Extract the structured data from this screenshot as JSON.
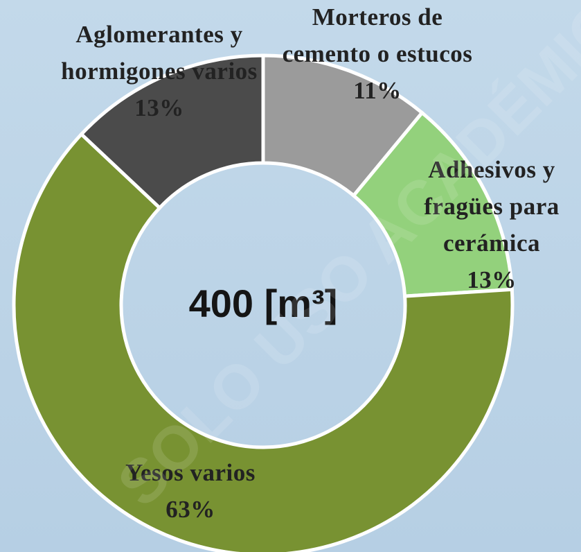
{
  "chart_data": {
    "type": "donut",
    "center_label": "400 [m³]",
    "watermark": "SOLO USO ACADÉMICO",
    "categories": [
      "Morteros de cemento o estucos",
      "Adhesivos y fragües para cerámica",
      "Yesos varios",
      "Aglomerantes y hormigones varios"
    ],
    "values": [
      11,
      13,
      63,
      13
    ],
    "value_labels": [
      "11%",
      "13%",
      "63%",
      "13%"
    ],
    "colors": [
      "#9b9b9b",
      "#93d17c",
      "#789232",
      "#4b4b4b"
    ]
  }
}
